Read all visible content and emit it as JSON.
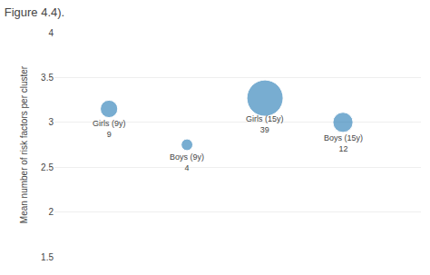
{
  "chart_data": {
    "type": "scatter",
    "title": "Figure 4.4).",
    "ylabel": "Mean number of risk factors per cluster",
    "categories": [
      "Girls (9y)",
      "Boys (9y)",
      "Girls (15y)",
      "Boys (15y)"
    ],
    "values": [
      3.15,
      2.75,
      3.27,
      3.0
    ],
    "sizes": [
      9,
      4,
      39,
      12
    ],
    "ylim": [
      1.5,
      4.0
    ],
    "yticks": [
      1.5,
      2.0,
      2.5,
      3.0,
      3.5,
      4.0
    ],
    "grid": true,
    "tick_labels": "y"
  }
}
